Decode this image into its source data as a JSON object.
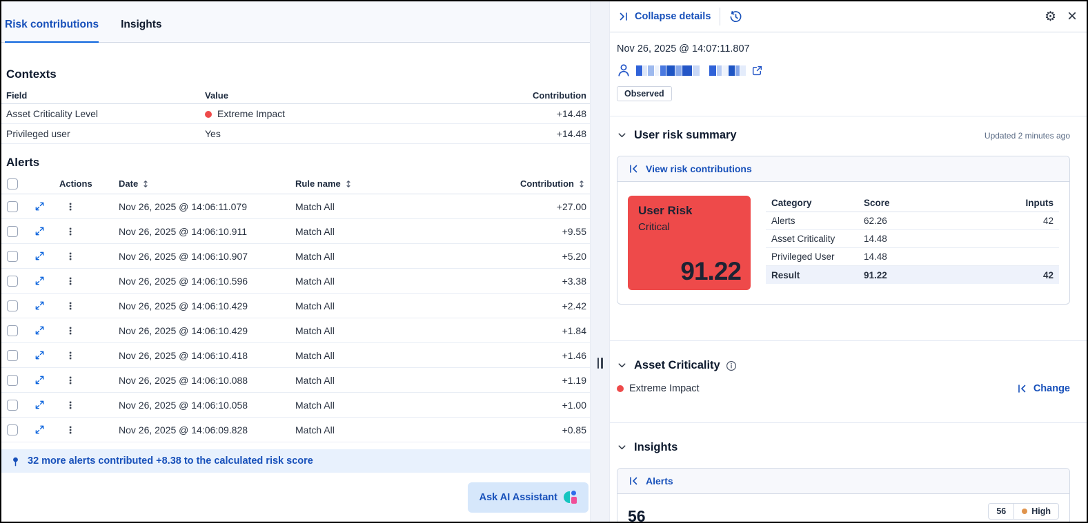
{
  "colors": {
    "primary_blue": "#0b64dd",
    "link_blue": "#1750ba",
    "critical_red": "#ee4a4a",
    "high_orange": "#e0944d"
  },
  "left_panel": {
    "tabs": [
      {
        "label": "Risk contributions",
        "active": true
      },
      {
        "label": "Insights",
        "active": false
      }
    ],
    "contexts": {
      "title": "Contexts",
      "columns": [
        "Field",
        "Value",
        "Contribution"
      ],
      "rows": [
        {
          "field": "Asset Criticality Level",
          "value": "Extreme Impact",
          "value_dot": "red",
          "contribution": "+14.48"
        },
        {
          "field": "Privileged user",
          "value": "Yes",
          "value_dot": "",
          "contribution": "+14.48"
        }
      ]
    },
    "alerts": {
      "title": "Alerts",
      "columns": [
        "Actions",
        "Date",
        "Rule name",
        "Contribution"
      ],
      "rows": [
        {
          "date": "Nov 26, 2025 @ 14:06:11.079",
          "rule": "Match All",
          "contribution": "+27.00"
        },
        {
          "date": "Nov 26, 2025 @ 14:06:10.911",
          "rule": "Match All",
          "contribution": "+9.55"
        },
        {
          "date": "Nov 26, 2025 @ 14:06:10.907",
          "rule": "Match All",
          "contribution": "+5.20"
        },
        {
          "date": "Nov 26, 2025 @ 14:06:10.596",
          "rule": "Match All",
          "contribution": "+3.38"
        },
        {
          "date": "Nov 26, 2025 @ 14:06:10.429",
          "rule": "Match All",
          "contribution": "+2.42"
        },
        {
          "date": "Nov 26, 2025 @ 14:06:10.429",
          "rule": "Match All",
          "contribution": "+1.84"
        },
        {
          "date": "Nov 26, 2025 @ 14:06:10.418",
          "rule": "Match All",
          "contribution": "+1.46"
        },
        {
          "date": "Nov 26, 2025 @ 14:06:10.088",
          "rule": "Match All",
          "contribution": "+1.19"
        },
        {
          "date": "Nov 26, 2025 @ 14:06:10.058",
          "rule": "Match All",
          "contribution": "+1.00"
        },
        {
          "date": "Nov 26, 2025 @ 14:06:09.828",
          "rule": "Match All",
          "contribution": "+0.85"
        }
      ],
      "callout": "32 more alerts contributed +8.38 to the calculated risk score"
    },
    "ask_ai_label": "Ask AI Assistant"
  },
  "right_panel": {
    "header": {
      "collapse_label": "Collapse details"
    },
    "timestamp": "Nov 26, 2025 @ 14:07:11.807",
    "entity_badge": "Observed",
    "user_risk_summary": {
      "title": "User risk summary",
      "updated": "Updated 2 minutes ago",
      "link": "View risk contributions",
      "tile": {
        "title": "User Risk",
        "level": "Critical",
        "score": "91.22"
      },
      "table": {
        "columns": [
          "Category",
          "Score",
          "Inputs"
        ],
        "rows": [
          {
            "category": "Alerts",
            "score": "62.26",
            "inputs": "42",
            "highlight": false
          },
          {
            "category": "Asset Criticality",
            "score": "14.48",
            "inputs": "",
            "highlight": false
          },
          {
            "category": "Privileged User",
            "score": "14.48",
            "inputs": "",
            "highlight": false
          },
          {
            "category": "Result",
            "score": "91.22",
            "inputs": "42",
            "highlight": true
          }
        ]
      }
    },
    "asset_criticality": {
      "title": "Asset Criticality",
      "value": "Extreme Impact",
      "change_label": "Change"
    },
    "insights": {
      "title": "Insights",
      "link": "Alerts",
      "count": "56",
      "badge_count": "56",
      "badge_level": "High"
    }
  }
}
